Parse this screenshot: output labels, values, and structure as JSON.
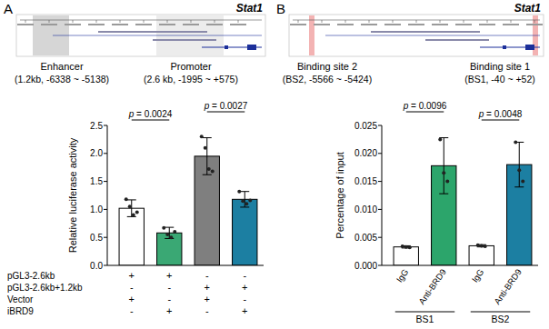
{
  "chart_data": [
    {
      "type": "bar",
      "panel": "A",
      "gene": "Stat1",
      "regions": [
        {
          "label": "Enhancer",
          "detail": "(1.2kb, -6338 ~ -5138)"
        },
        {
          "label": "Promoter",
          "detail": "(2.6 kb, -1995 ~ +575)"
        }
      ],
      "ylabel": "Relative luciferase activity",
      "categories": [
        null,
        null,
        null,
        null
      ],
      "values": [
        1.02,
        0.58,
        1.95,
        1.18
      ],
      "errors": [
        0.15,
        0.1,
        0.33,
        0.14
      ],
      "points": [
        [
          1.18,
          1.05,
          0.9,
          0.95
        ],
        [
          0.67,
          0.55,
          0.5,
          0.6
        ],
        [
          2.3,
          2.1,
          1.72,
          1.68
        ],
        [
          1.32,
          1.15,
          1.1,
          1.16
        ]
      ],
      "colors": [
        "#ffffff",
        "#3aa874",
        "#7f7f7f",
        "#1c7fa2"
      ],
      "ylim": [
        0,
        2.5
      ],
      "yticks": [
        {
          "value": 0,
          "label": "0.0"
        },
        {
          "value": 0.5,
          "label": "0.5"
        },
        {
          "value": 1,
          "label": "1.0"
        },
        {
          "value": 1.5,
          "label": "1.5"
        },
        {
          "value": 2,
          "label": "2.0"
        },
        {
          "value": 2.5,
          "label": "2.5"
        }
      ],
      "comparisons": [
        {
          "text": "p = 0.0024",
          "bars": [
            0,
            1
          ]
        },
        {
          "text": "p = 0.0027",
          "bars": [
            2,
            3
          ]
        }
      ],
      "conditions": [
        {
          "label": "pGL3-2.6kb",
          "signs": [
            "+",
            "+",
            "-",
            "-"
          ]
        },
        {
          "label": "pGL3-2.6kb+1.2kb",
          "signs": [
            "-",
            "-",
            "+",
            "+"
          ]
        },
        {
          "label": "Vector",
          "signs": [
            "+",
            "-",
            "+",
            "-"
          ]
        },
        {
          "label": "iBRD9",
          "signs": [
            "-",
            "+",
            "-",
            "+"
          ]
        }
      ]
    },
    {
      "type": "bar",
      "panel": "B",
      "gene": "Stat1",
      "regions": [
        {
          "label": "Binding site 2",
          "detail": "(BS2, -5566 ~ -5424)"
        },
        {
          "label": "Binding site 1",
          "detail": "(BS1, -40 ~ +52)"
        }
      ],
      "ylabel": "Percentage of input",
      "categories": [
        "IgG",
        "Anti-BRD9",
        "IgG",
        "Anti-BRD9"
      ],
      "groups": [
        "BS1",
        "BS2"
      ],
      "values": [
        0.0033,
        0.0178,
        0.0035,
        0.018
      ],
      "errors": [
        0.0002,
        0.005,
        0.0002,
        0.004
      ],
      "points": [
        [
          0.0034,
          0.0033,
          0.0032
        ],
        [
          0.0225,
          0.0165,
          0.015
        ],
        [
          0.0036,
          0.0035,
          0.0034
        ],
        [
          0.022,
          0.017,
          0.015
        ]
      ],
      "colors": [
        "#ffffff",
        "#2ca56b",
        "#ffffff",
        "#1c7fa2"
      ],
      "ylim": [
        0,
        0.025
      ],
      "yticks": [
        {
          "value": 0,
          "label": "0.000"
        },
        {
          "value": 0.005,
          "label": "0.005"
        },
        {
          "value": 0.01,
          "label": "0.010"
        },
        {
          "value": 0.015,
          "label": "0.015"
        },
        {
          "value": 0.02,
          "label": "0.020"
        },
        {
          "value": 0.025,
          "label": "0.025"
        }
      ],
      "comparisons": [
        {
          "text": "p = 0.0096",
          "bars": [
            0,
            1
          ]
        },
        {
          "text": "p = 0.0048",
          "bars": [
            2,
            3
          ]
        }
      ]
    }
  ]
}
